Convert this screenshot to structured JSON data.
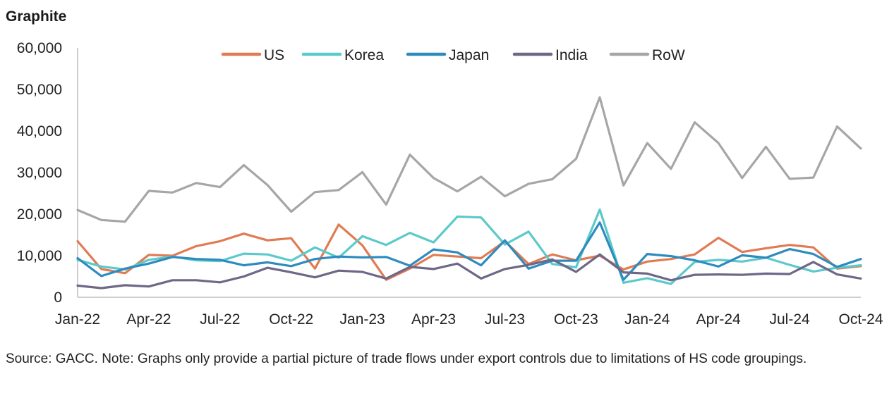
{
  "title": "Graphite",
  "source": "Source: GACC. Note: Graphs only provide a partial picture of trade flows under export controls due to limitations of HS code groupings.",
  "chart_data": {
    "type": "line",
    "title": "Graphite",
    "xlabel": "",
    "ylabel": "",
    "ylim": [
      0,
      60000
    ],
    "yticks": [
      "0",
      "10,000",
      "20,000",
      "30,000",
      "40,000",
      "50,000",
      "60,000"
    ],
    "ytick_values": [
      0,
      10000,
      20000,
      30000,
      40000,
      50000,
      60000
    ],
    "x": [
      "Jan-22",
      "Feb-22",
      "Mar-22",
      "Apr-22",
      "May-22",
      "Jun-22",
      "Jul-22",
      "Aug-22",
      "Sep-22",
      "Oct-22",
      "Nov-22",
      "Dec-22",
      "Jan-23",
      "Feb-23",
      "Mar-23",
      "Apr-23",
      "May-23",
      "Jun-23",
      "Jul-23",
      "Aug-23",
      "Sep-23",
      "Oct-23",
      "Nov-23",
      "Dec-23",
      "Jan-24",
      "Feb-24",
      "Mar-24",
      "Apr-24",
      "May-24",
      "Jun-24",
      "Jul-24",
      "Aug-24",
      "Sep-24",
      "Oct-24"
    ],
    "xtick_labels": [
      "Jan-22",
      "Apr-22",
      "Jul-22",
      "Oct-22",
      "Jan-23",
      "Apr-23",
      "Jul-23",
      "Oct-23",
      "Jan-24",
      "Apr-24",
      "Jul-24",
      "Oct-24"
    ],
    "xtick_indices": [
      0,
      3,
      6,
      9,
      12,
      15,
      18,
      21,
      24,
      27,
      30,
      33
    ],
    "grid": false,
    "legend_position": "top",
    "series": [
      {
        "name": "US",
        "color": "#E07B54",
        "values": [
          13500,
          6800,
          5800,
          10200,
          10000,
          12300,
          13500,
          15300,
          13700,
          14200,
          6900,
          17500,
          12500,
          4200,
          6900,
          10200,
          9800,
          9400,
          13500,
          8000,
          10300,
          8900,
          10000,
          6700,
          8600,
          9200,
          10300,
          14300,
          10900,
          11800,
          12600,
          12000,
          6900,
          7500
        ]
      },
      {
        "name": "Korea",
        "color": "#5CC9CB",
        "values": [
          9000,
          7400,
          6700,
          9000,
          9800,
          8900,
          8700,
          10500,
          10300,
          8800,
          12000,
          9500,
          14700,
          12600,
          15500,
          13200,
          19400,
          19200,
          12700,
          15800,
          8000,
          7200,
          21100,
          3500,
          4600,
          3200,
          8500,
          9000,
          8600,
          9500,
          7800,
          6200,
          7100,
          7700
        ]
      },
      {
        "name": "Japan",
        "color": "#2E8BBF",
        "values": [
          9400,
          5100,
          6900,
          8100,
          9700,
          9200,
          9000,
          7700,
          8400,
          7500,
          9200,
          9800,
          9600,
          9700,
          7600,
          11500,
          10800,
          7700,
          13700,
          6900,
          8800,
          8800,
          18000,
          4200,
          10400,
          9900,
          8900,
          7400,
          10100,
          9500,
          11600,
          10400,
          7300,
          9200
        ]
      },
      {
        "name": "India",
        "color": "#6E6787",
        "values": [
          2800,
          2200,
          2900,
          2600,
          4100,
          4100,
          3600,
          5000,
          7100,
          6000,
          4800,
          6400,
          6100,
          4500,
          7300,
          6800,
          8100,
          4500,
          6800,
          7800,
          9100,
          6100,
          10300,
          6000,
          5700,
          4100,
          5400,
          5500,
          5400,
          5700,
          5600,
          8500,
          5500,
          4500
        ]
      },
      {
        "name": "RoW",
        "color": "#A6A6A6",
        "values": [
          21000,
          18600,
          18200,
          25600,
          25200,
          27500,
          26500,
          31800,
          27000,
          20600,
          25300,
          25800,
          30100,
          22300,
          34300,
          28700,
          25500,
          29000,
          24300,
          27300,
          28400,
          33300,
          48100,
          26900,
          37100,
          30900,
          42100,
          37100,
          28700,
          36200,
          28500,
          28800,
          41100,
          35800
        ]
      }
    ]
  }
}
